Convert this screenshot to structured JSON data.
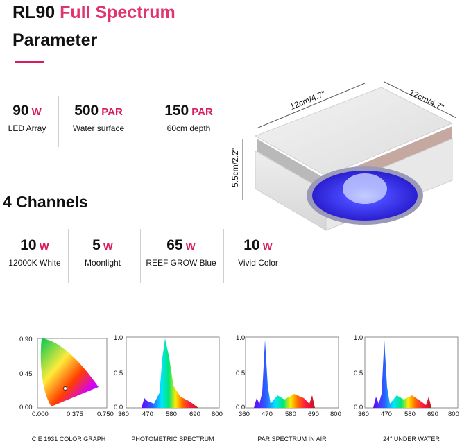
{
  "header": {
    "model": "RL90",
    "model_accent": "Full Spectrum",
    "subtitle": "Parameter"
  },
  "specs": [
    {
      "value": "90",
      "unit": "W",
      "label": "LED Array"
    },
    {
      "value": "500",
      "unit": "PAR",
      "label": "Water surface"
    },
    {
      "value": "150",
      "unit": "PAR",
      "label": "60cm depth"
    }
  ],
  "channels": {
    "title": "4 Channels",
    "items": [
      {
        "value": "10",
        "unit": "W",
        "label": "12000K White"
      },
      {
        "value": "5",
        "unit": "W",
        "label": "Moonlight"
      },
      {
        "value": "65",
        "unit": "W",
        "label": "REEF GROW Blue"
      },
      {
        "value": "10",
        "unit": "W",
        "label": "Vivid Color"
      }
    ]
  },
  "product": {
    "dim_top_left": "12cm/4.7\"",
    "dim_top_right": "12cm/4.7\"",
    "dim_height": "5.5cm/2.2\""
  },
  "graphs": [
    {
      "caption": "CIE 1931 COLOR GRAPH",
      "y_ticks": [
        "0.90",
        "0.45",
        "0.00"
      ],
      "x_ticks": [
        "0.000",
        "0.375",
        "0.750"
      ]
    },
    {
      "caption": "PHOTOMETRIC SPECTRUM",
      "y_ticks": [
        "1.0",
        "0.5",
        "0.0"
      ],
      "x_ticks": [
        "360",
        "470",
        "580",
        "690",
        "800"
      ]
    },
    {
      "caption": "PAR SPECTRUM IN AIR",
      "y_ticks": [
        "1.0",
        "0.5",
        "0.0"
      ],
      "x_ticks": [
        "360",
        "470",
        "580",
        "690",
        "800"
      ]
    },
    {
      "caption": "24″ UNDER WATER",
      "y_ticks": [
        "1.0",
        "0.5",
        "0.0"
      ],
      "x_ticks": [
        "360",
        "470",
        "580",
        "690",
        "800"
      ]
    }
  ],
  "colors": {
    "accent": "#d81b60",
    "led_blue": "#3b3bff"
  }
}
